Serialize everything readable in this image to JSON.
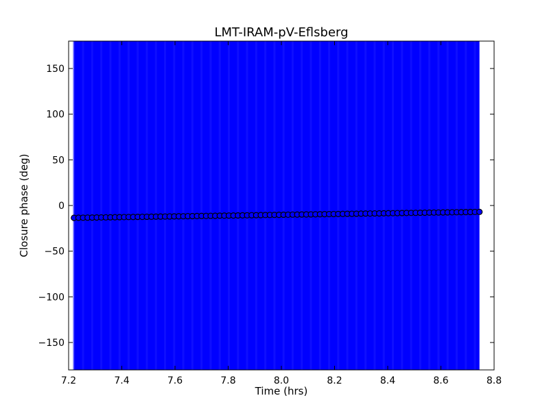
{
  "chart_data": {
    "type": "scatter",
    "title": "LMT-IRAM-pV-Eflsberg",
    "xlabel": "Time (hrs)",
    "ylabel": "Closure phase (deg)",
    "xlim": [
      7.2,
      8.8
    ],
    "ylim": [
      -180,
      180
    ],
    "xticks": [
      7.2,
      7.4,
      7.6,
      7.8,
      8.0,
      8.2,
      8.4,
      8.6,
      8.8
    ],
    "xtick_labels": [
      "7.2",
      "7.4",
      "7.6",
      "7.8",
      "8.0",
      "8.2",
      "8.4",
      "8.6",
      "8.8"
    ],
    "yticks": [
      150,
      100,
      50,
      0,
      -50,
      -100,
      -150
    ],
    "ytick_labels": [
      "150",
      "100",
      "50",
      "0",
      "−50",
      "−100",
      "−150"
    ],
    "grid": false,
    "error_band": {
      "x_start": 7.22,
      "x_end": 8.745,
      "color": "#0000ff"
    },
    "series": [
      {
        "marker_color": "#0000ff",
        "marker_edge": "#000000",
        "x_start": 7.22,
        "x_end": 8.745,
        "y_start": -13.5,
        "y_end": -7.0,
        "n_points": 90
      }
    ]
  }
}
